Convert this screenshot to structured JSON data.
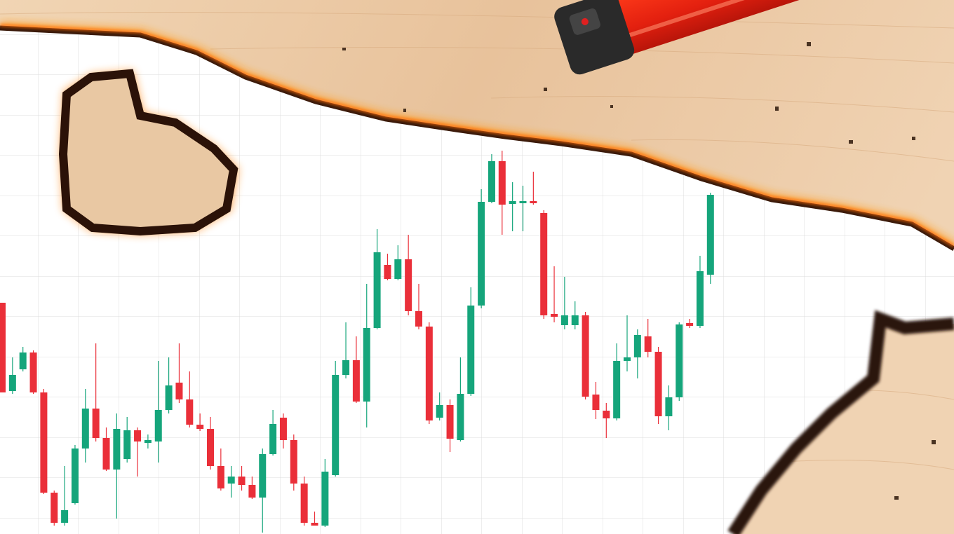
{
  "chart_data": {
    "type": "candlestick",
    "up_color": "#15a57b",
    "down_color": "#ea2f39",
    "ylim": [
      0,
      762
    ],
    "open": [
      330,
      204,
      235,
      259,
      202,
      59,
      16,
      44,
      122,
      179,
      137,
      92,
      107,
      148,
      130,
      132,
      177,
      216,
      192,
      156,
      150,
      97,
      72,
      82,
      70,
      52,
      114,
      166,
      134,
      72,
      16,
      12,
      84,
      227,
      248,
      189,
      294,
      384,
      364,
      392,
      318,
      296,
      166,
      184,
      134,
      200,
      326,
      474,
      532,
      471,
      472,
      475,
      458,
      314,
      298,
      298,
      312,
      199,
      176,
      165,
      247,
      252,
      282,
      260,
      168,
      195,
      301,
      297,
      370
    ],
    "high": [
      330,
      252,
      267,
      262,
      207,
      62,
      97,
      127,
      207,
      272,
      152,
      172,
      167,
      152,
      142,
      247,
      252,
      272,
      232,
      172,
      167,
      122,
      97,
      97,
      82,
      122,
      177,
      172,
      142,
      82,
      32,
      107,
      247,
      302,
      282,
      357,
      435,
      400,
      412,
      427,
      357,
      302,
      202,
      192,
      252,
      352,
      492,
      542,
      547,
      502,
      497,
      517,
      462,
      382,
      367,
      332,
      317,
      217,
      187,
      272,
      312,
      292,
      307,
      267,
      212,
      302,
      307,
      397,
      487
    ],
    "low": [
      202,
      200,
      232,
      200,
      57,
      12,
      12,
      42,
      102,
      132,
      90,
      22,
      102,
      82,
      122,
      102,
      172,
      187,
      152,
      147,
      92,
      62,
      52,
      62,
      50,
      2,
      112,
      122,
      62,
      12,
      12,
      10,
      82,
      222,
      187,
      152,
      292,
      362,
      362,
      312,
      292,
      157,
      162,
      117,
      132,
      197,
      322,
      472,
      427,
      432,
      432,
      470,
      307,
      302,
      292,
      292,
      192,
      164,
      137,
      162,
      232,
      222,
      252,
      157,
      148,
      190,
      294,
      294,
      357
    ],
    "close": [
      202,
      227,
      259,
      202,
      59,
      16,
      34,
      122,
      179,
      137,
      92,
      150,
      148,
      132,
      134,
      177,
      212,
      192,
      156,
      150,
      97,
      65,
      82,
      70,
      52,
      114,
      157,
      134,
      72,
      16,
      12,
      89,
      227,
      248,
      189,
      294,
      402,
      364,
      392,
      318,
      296,
      162,
      184,
      136,
      200,
      326,
      474,
      532,
      470,
      475,
      475,
      472,
      312,
      310,
      312,
      312,
      196,
      177,
      165,
      247,
      252,
      284,
      260,
      168,
      195,
      299,
      297,
      375,
      484
    ]
  }
}
